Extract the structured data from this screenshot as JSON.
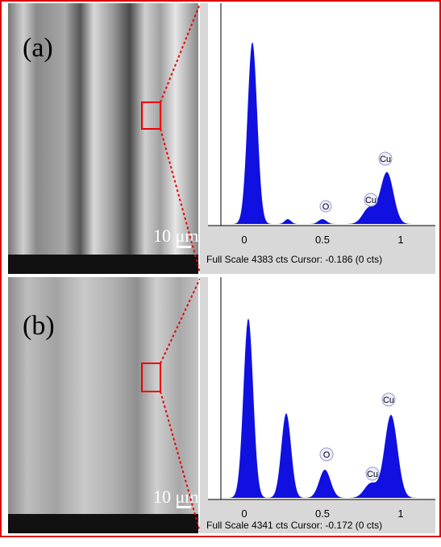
{
  "panels": [
    {
      "label": "(a)",
      "scale_bar": "10 μm",
      "x_ticks": [
        "0",
        "0.5",
        "1"
      ],
      "peak_labels": [
        "O",
        "Cu",
        "Cu"
      ],
      "footer": "Full Scale 4383 cts Cursor: -0.186  (0 cts)"
    },
    {
      "label": "(b)",
      "scale_bar": "10 μm",
      "x_ticks": [
        "0",
        "0.5",
        "1"
      ],
      "peak_labels": [
        "O",
        "Cu",
        "Cu"
      ],
      "footer": "Full Scale 4341 cts Cursor: -0.172  (0 cts)"
    }
  ]
}
